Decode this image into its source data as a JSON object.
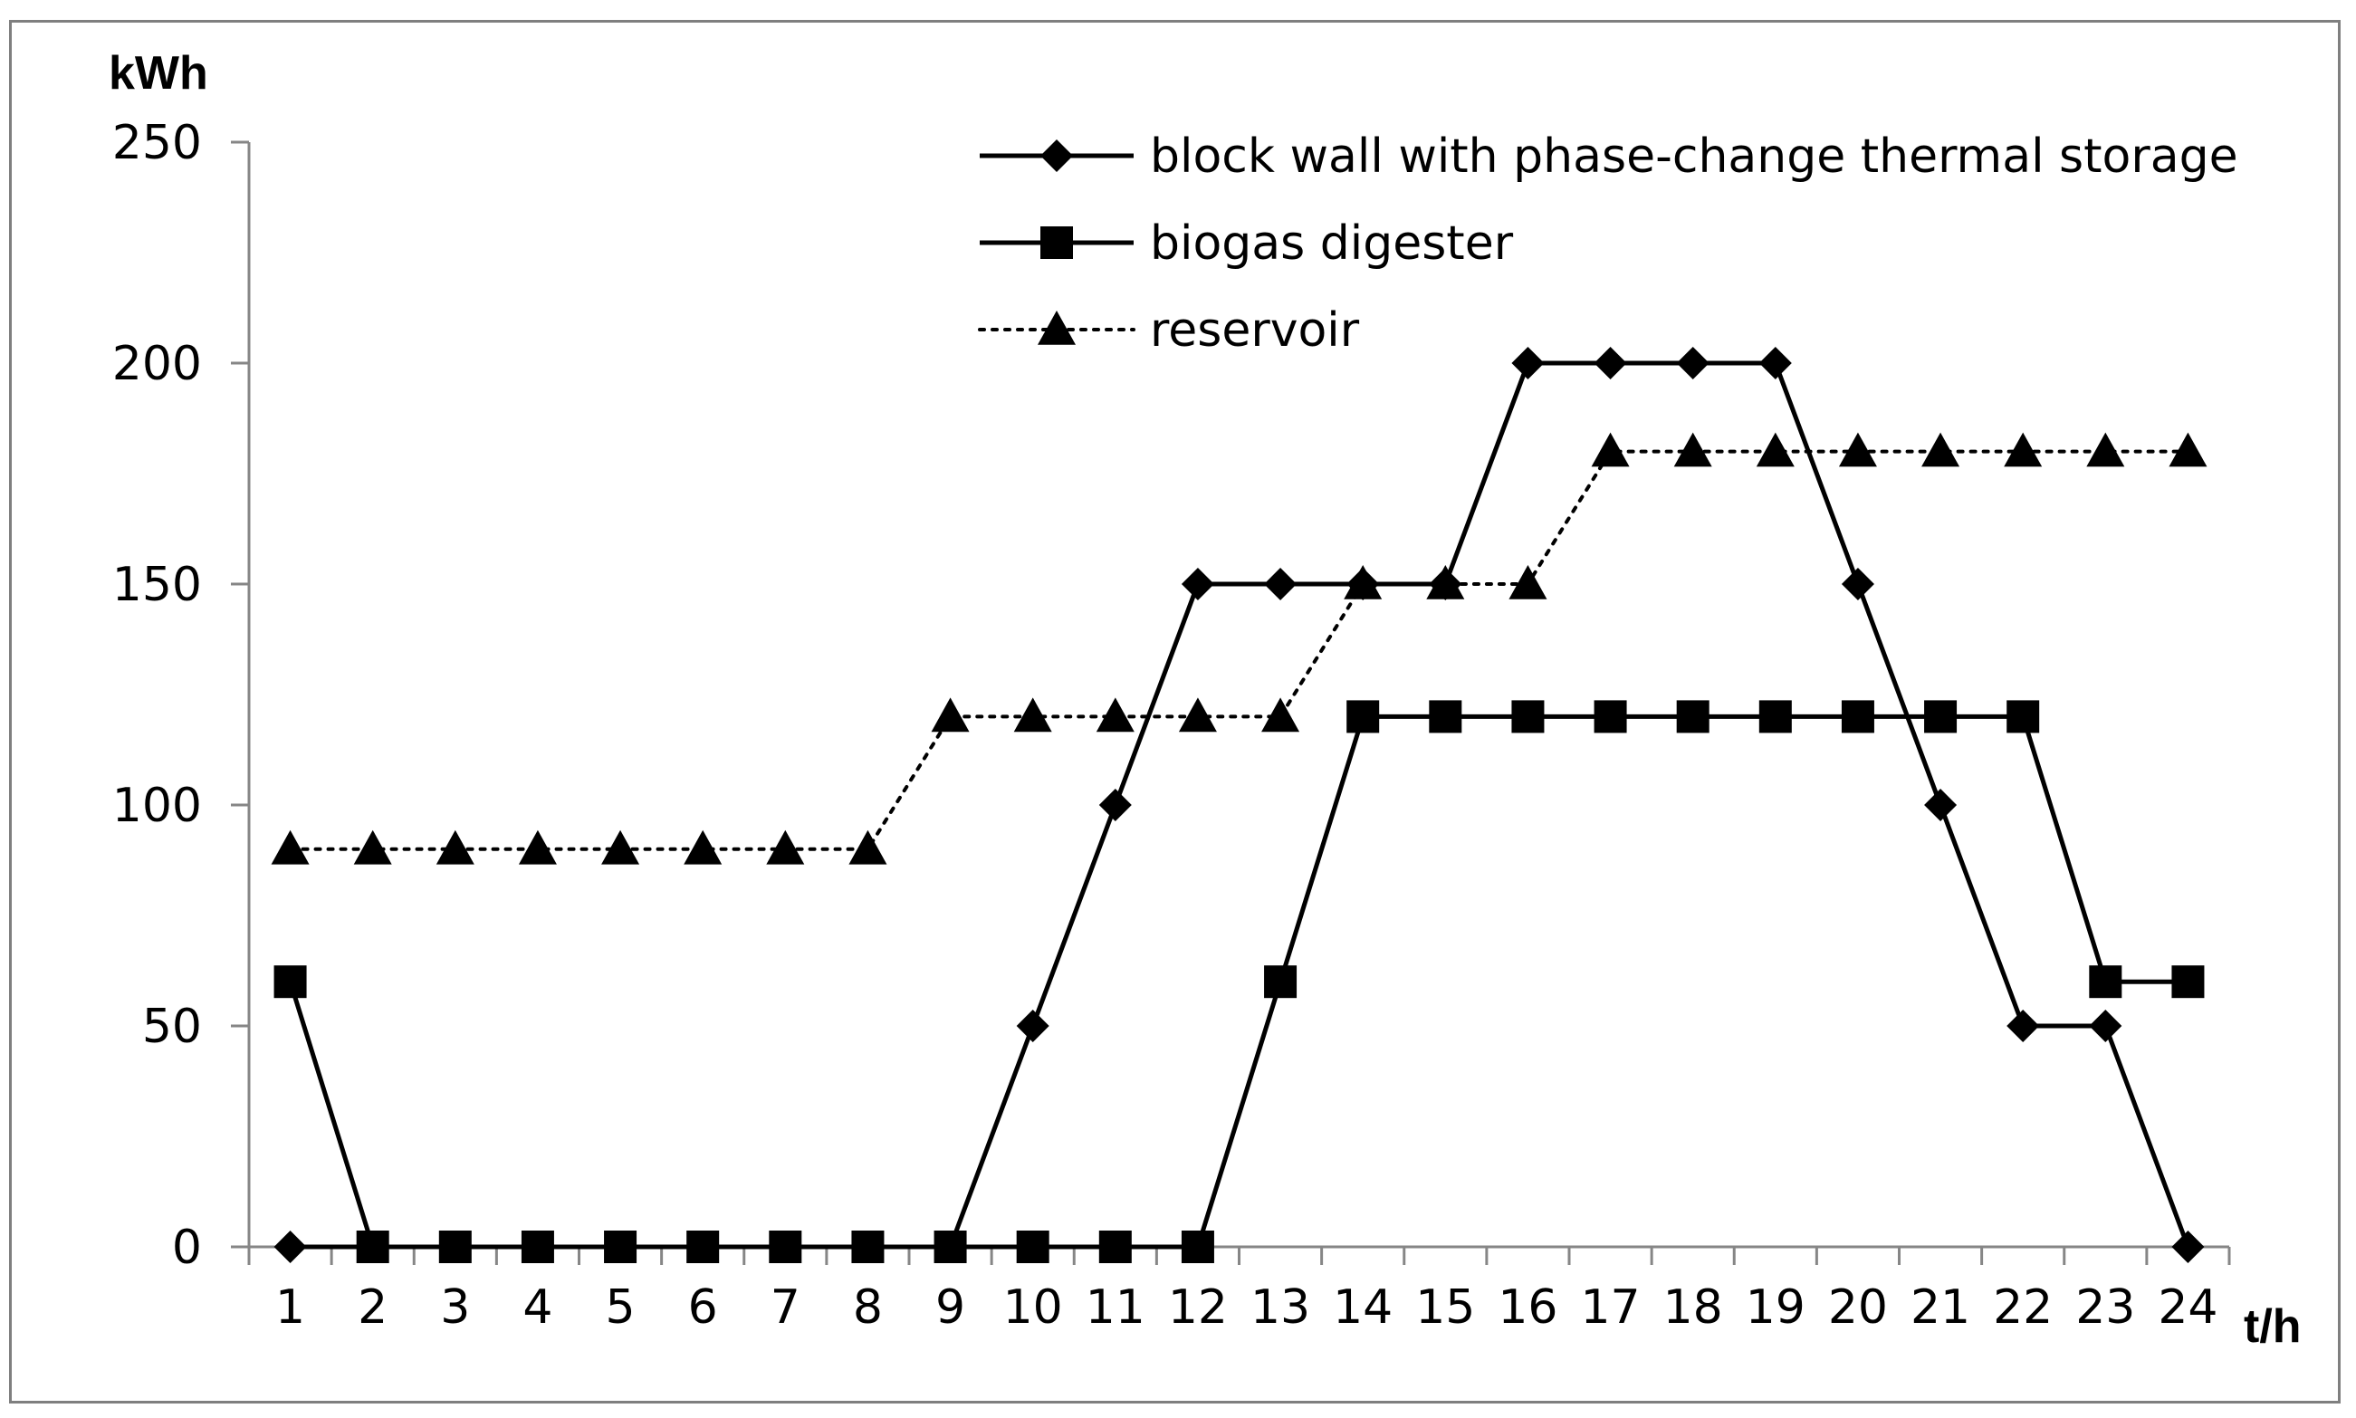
{
  "chart_data": {
    "type": "line",
    "title": "",
    "ylabel": "kWh",
    "xlabel": "t/h",
    "ylim": [
      0,
      250
    ],
    "yticks": [
      0,
      50,
      100,
      150,
      200,
      250
    ],
    "grid": false,
    "legend_position": "top-right",
    "x": [
      1,
      2,
      3,
      4,
      5,
      6,
      7,
      8,
      9,
      10,
      11,
      12,
      13,
      14,
      15,
      16,
      17,
      18,
      19,
      20,
      21,
      22,
      23,
      24
    ],
    "series": [
      {
        "name": "block wall with phase-change thermal storage",
        "marker": "diamond",
        "line_style": "solid",
        "color": "#000000",
        "values": [
          0,
          0,
          0,
          0,
          0,
          0,
          0,
          0,
          0,
          50,
          100,
          150,
          150,
          150,
          150,
          200,
          200,
          200,
          200,
          150,
          100,
          50,
          50,
          0
        ]
      },
      {
        "name": "biogas digester",
        "marker": "square",
        "line_style": "solid",
        "color": "#000000",
        "values": [
          60,
          0,
          0,
          0,
          0,
          0,
          0,
          0,
          0,
          0,
          0,
          0,
          60,
          120,
          120,
          120,
          120,
          120,
          120,
          120,
          120,
          120,
          60,
          60
        ]
      },
      {
        "name": "reservoir",
        "marker": "triangle",
        "line_style": "dotted",
        "color": "#000000",
        "values": [
          90,
          90,
          90,
          90,
          90,
          90,
          90,
          90,
          120,
          120,
          120,
          120,
          120,
          150,
          150,
          150,
          180,
          180,
          180,
          180,
          180,
          180,
          180,
          180
        ]
      }
    ]
  }
}
